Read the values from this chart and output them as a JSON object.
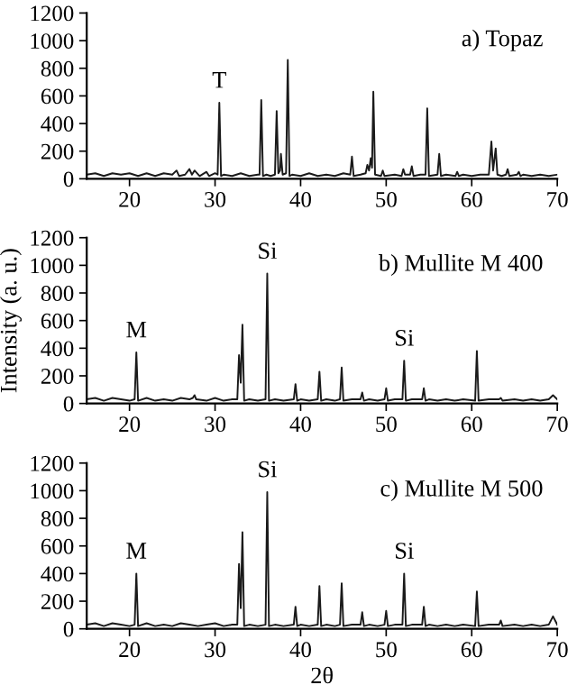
{
  "chart_data": [
    {
      "type": "line",
      "title": "a) Topaz",
      "xlim": [
        15,
        70
      ],
      "xticks": [
        20,
        30,
        40,
        50,
        60,
        70
      ],
      "ylim": [
        0,
        1200
      ],
      "yticks": [
        0,
        200,
        400,
        600,
        800,
        1000,
        1200
      ],
      "grid": false,
      "legend": false,
      "annotations": [
        {
          "text": "T",
          "x": 30.5,
          "y": 550
        }
      ],
      "series": [
        {
          "color": "#1a1a1a",
          "x": [
            15,
            16,
            17,
            18,
            19,
            20,
            21,
            22,
            23,
            24,
            25,
            25.5,
            25.8,
            26.5,
            27,
            27.3,
            27.6,
            28.2,
            29,
            29.3,
            30,
            30.3,
            30.5,
            30.7,
            31,
            32,
            33,
            34,
            35,
            35.2,
            35.4,
            35.6,
            36,
            36.5,
            37,
            37.2,
            37.4,
            37.6,
            37.7,
            37.9,
            38.3,
            38.5,
            38.7,
            39,
            40,
            41,
            42,
            43,
            44,
            45,
            45.8,
            46,
            46.2,
            47,
            47.6,
            47.8,
            48,
            48.2,
            48.35,
            48.5,
            48.7,
            49.4,
            49.6,
            49.8,
            51,
            51.8,
            52,
            52.2,
            52.8,
            53,
            53.2,
            54,
            54.6,
            54.8,
            55,
            56,
            56.2,
            56.4,
            57,
            58.1,
            58.3,
            58.5,
            59,
            60,
            61,
            62,
            62.3,
            62.5,
            62.8,
            63,
            63.5,
            64,
            64.2,
            64.4,
            65.3,
            65.5,
            65.7,
            66,
            67,
            68,
            69,
            70
          ],
          "values": [
            30,
            40,
            20,
            40,
            30,
            40,
            20,
            40,
            20,
            40,
            30,
            60,
            20,
            30,
            70,
            30,
            60,
            20,
            50,
            20,
            40,
            30,
            550,
            20,
            30,
            20,
            40,
            20,
            30,
            30,
            570,
            20,
            30,
            20,
            30,
            490,
            40,
            60,
            180,
            30,
            40,
            860,
            20,
            30,
            20,
            40,
            20,
            30,
            20,
            40,
            30,
            160,
            20,
            30,
            40,
            100,
            60,
            150,
            80,
            630,
            30,
            20,
            60,
            20,
            30,
            20,
            70,
            30,
            30,
            90,
            20,
            30,
            30,
            510,
            20,
            30,
            180,
            20,
            30,
            20,
            50,
            20,
            30,
            20,
            30,
            30,
            270,
            60,
            220,
            30,
            20,
            30,
            70,
            20,
            30,
            50,
            20,
            30,
            20,
            30,
            20,
            30
          ]
        }
      ]
    },
    {
      "type": "line",
      "title": "b) Mullite M 400",
      "ylabel": "Intensity (a. u.)",
      "xlim": [
        15,
        70
      ],
      "xticks": [
        20,
        30,
        40,
        50,
        60,
        70
      ],
      "ylim": [
        0,
        1200
      ],
      "yticks": [
        0,
        200,
        400,
        600,
        800,
        1000,
        1200
      ],
      "grid": false,
      "legend": false,
      "annotations": [
        {
          "text": "M",
          "x": 20.8,
          "y": 370
        },
        {
          "text": "Si",
          "x": 36.1,
          "y": 940
        },
        {
          "text": "Si",
          "x": 52.1,
          "y": 310
        }
      ],
      "series": [
        {
          "color": "#1a1a1a",
          "x": [
            15,
            16,
            17,
            18,
            19,
            20,
            20.6,
            20.8,
            21,
            22,
            23,
            24,
            25,
            26,
            27,
            27.4,
            27.6,
            27.8,
            29,
            30,
            31,
            32,
            32.6,
            32.8,
            33,
            33.2,
            33.4,
            34,
            35,
            35.9,
            36.1,
            36.3,
            37,
            38,
            39.2,
            39.4,
            39.6,
            40,
            41,
            42,
            42.2,
            42.4,
            43,
            44,
            44.6,
            44.8,
            45,
            46,
            47,
            47.2,
            47.4,
            48,
            49,
            49.8,
            50,
            50.2,
            51,
            51.9,
            52.1,
            52.3,
            53,
            54.2,
            54.4,
            54.6,
            55,
            56,
            57,
            58,
            59,
            60.4,
            60.6,
            60.8,
            62,
            63.2,
            63.4,
            63.6,
            65,
            66,
            67,
            68,
            69,
            69.5,
            70
          ],
          "values": [
            30,
            40,
            20,
            40,
            30,
            20,
            30,
            370,
            20,
            40,
            20,
            30,
            20,
            40,
            30,
            40,
            60,
            30,
            20,
            40,
            20,
            30,
            30,
            350,
            150,
            570,
            20,
            30,
            20,
            30,
            940,
            20,
            30,
            20,
            30,
            140,
            20,
            30,
            20,
            30,
            230,
            20,
            30,
            20,
            30,
            260,
            20,
            30,
            30,
            80,
            20,
            30,
            20,
            30,
            110,
            20,
            30,
            30,
            310,
            20,
            30,
            30,
            110,
            20,
            30,
            20,
            30,
            20,
            30,
            20,
            380,
            20,
            30,
            30,
            40,
            20,
            30,
            20,
            30,
            20,
            30,
            60,
            30
          ]
        }
      ]
    },
    {
      "type": "line",
      "title": "c) Mullite M 500",
      "xlabel": "2θ",
      "xlim": [
        15,
        70
      ],
      "xticks": [
        20,
        30,
        40,
        50,
        60,
        70
      ],
      "ylim": [
        0,
        1200
      ],
      "yticks": [
        0,
        200,
        400,
        600,
        800,
        1000,
        1200
      ],
      "grid": false,
      "legend": false,
      "annotations": [
        {
          "text": "M",
          "x": 20.8,
          "y": 400
        },
        {
          "text": "Si",
          "x": 36.1,
          "y": 990
        },
        {
          "text": "Si",
          "x": 52.1,
          "y": 400
        }
      ],
      "series": [
        {
          "color": "#1a1a1a",
          "x": [
            15,
            16,
            17,
            18,
            19,
            20,
            20.6,
            20.8,
            21,
            22,
            23,
            24,
            25,
            26,
            27,
            28,
            29,
            30,
            31,
            32,
            32.6,
            32.8,
            33,
            33.2,
            33.4,
            34,
            35,
            35.9,
            36.1,
            36.3,
            37,
            38,
            39.2,
            39.4,
            39.6,
            40,
            41,
            42,
            42.2,
            42.4,
            43,
            44,
            44.6,
            44.8,
            45,
            46,
            47,
            47.2,
            47.4,
            48,
            49,
            49.8,
            50,
            50.2,
            51,
            51.9,
            52.1,
            52.3,
            53,
            54.2,
            54.4,
            54.6,
            55,
            56,
            57,
            58,
            59,
            60.4,
            60.6,
            60.8,
            62,
            63.2,
            63.4,
            63.6,
            65,
            66,
            67,
            68,
            69,
            69.5,
            70
          ],
          "values": [
            30,
            40,
            20,
            40,
            30,
            20,
            30,
            400,
            20,
            40,
            20,
            30,
            20,
            40,
            30,
            20,
            30,
            40,
            20,
            30,
            30,
            470,
            150,
            700,
            20,
            30,
            20,
            30,
            990,
            20,
            30,
            20,
            30,
            160,
            20,
            30,
            20,
            30,
            310,
            20,
            30,
            20,
            30,
            330,
            20,
            30,
            30,
            120,
            20,
            30,
            20,
            30,
            130,
            20,
            30,
            30,
            400,
            20,
            30,
            30,
            160,
            20,
            30,
            20,
            30,
            20,
            30,
            20,
            270,
            20,
            30,
            30,
            60,
            20,
            30,
            20,
            30,
            20,
            30,
            90,
            30
          ]
        }
      ]
    }
  ]
}
